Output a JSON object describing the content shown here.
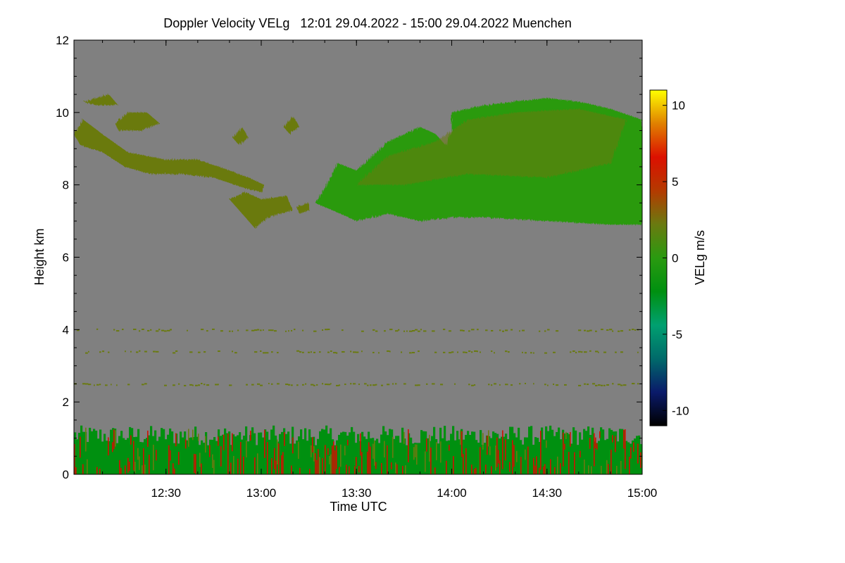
{
  "chart_data": {
    "type": "heatmap",
    "title": "Doppler Velocity VELg   12:01 29.04.2022 - 15:00 29.04.2022 Muenchen",
    "xlabel": "Time UTC",
    "ylabel": "Height km",
    "colorbar_label": "VELg m/s",
    "x_range": [
      "12:01",
      "15:00"
    ],
    "x_ticks": [
      "12:30",
      "13:00",
      "13:30",
      "14:00",
      "14:30",
      "15:00"
    ],
    "ylim": [
      0,
      12
    ],
    "y_ticks": [
      "0",
      "2",
      "4",
      "6",
      "8",
      "10",
      "12"
    ],
    "clim": [
      -11,
      11
    ],
    "colorbar_ticks": [
      "-10",
      "-5",
      "0",
      "5",
      "10"
    ],
    "colormap": [
      "#000000",
      "#0a1a6a",
      "#006a6a",
      "#00a070",
      "#009010",
      "#2a9a10",
      "#6a7a10",
      "#b43a00",
      "#dc1000",
      "#e08000",
      "#ffff00"
    ],
    "background_color": "#808080",
    "regions": [
      {
        "name": "boundary layer echo",
        "time_range": [
          "12:01",
          "15:00"
        ],
        "height_range": [
          0,
          1.4
        ],
        "dominant_velocity": "mixed -3 to 3",
        "colors": [
          "#009010",
          "#d01000",
          "#6a7a10"
        ]
      },
      {
        "name": "cirrus cloud west",
        "time_range": [
          "12:01",
          "13:01"
        ],
        "height_range": [
          6.7,
          10.5
        ],
        "dominant_velocity": "about 0",
        "colors": [
          "#6a7a10"
        ]
      },
      {
        "name": "cirrus cloud east",
        "time_range": [
          "13:17",
          "15:00"
        ],
        "height_range": [
          6.9,
          10.5
        ],
        "dominant_velocity": "-1 to 0",
        "colors": [
          "#2a9a10",
          "#6a7a10"
        ]
      },
      {
        "name": "scattered echo lines",
        "time_range": [
          "12:01",
          "15:00"
        ],
        "heights": [
          2.5,
          3.4,
          4.0
        ],
        "dominant_velocity": "about 0",
        "colors": [
          "#6a7a10"
        ]
      }
    ]
  }
}
